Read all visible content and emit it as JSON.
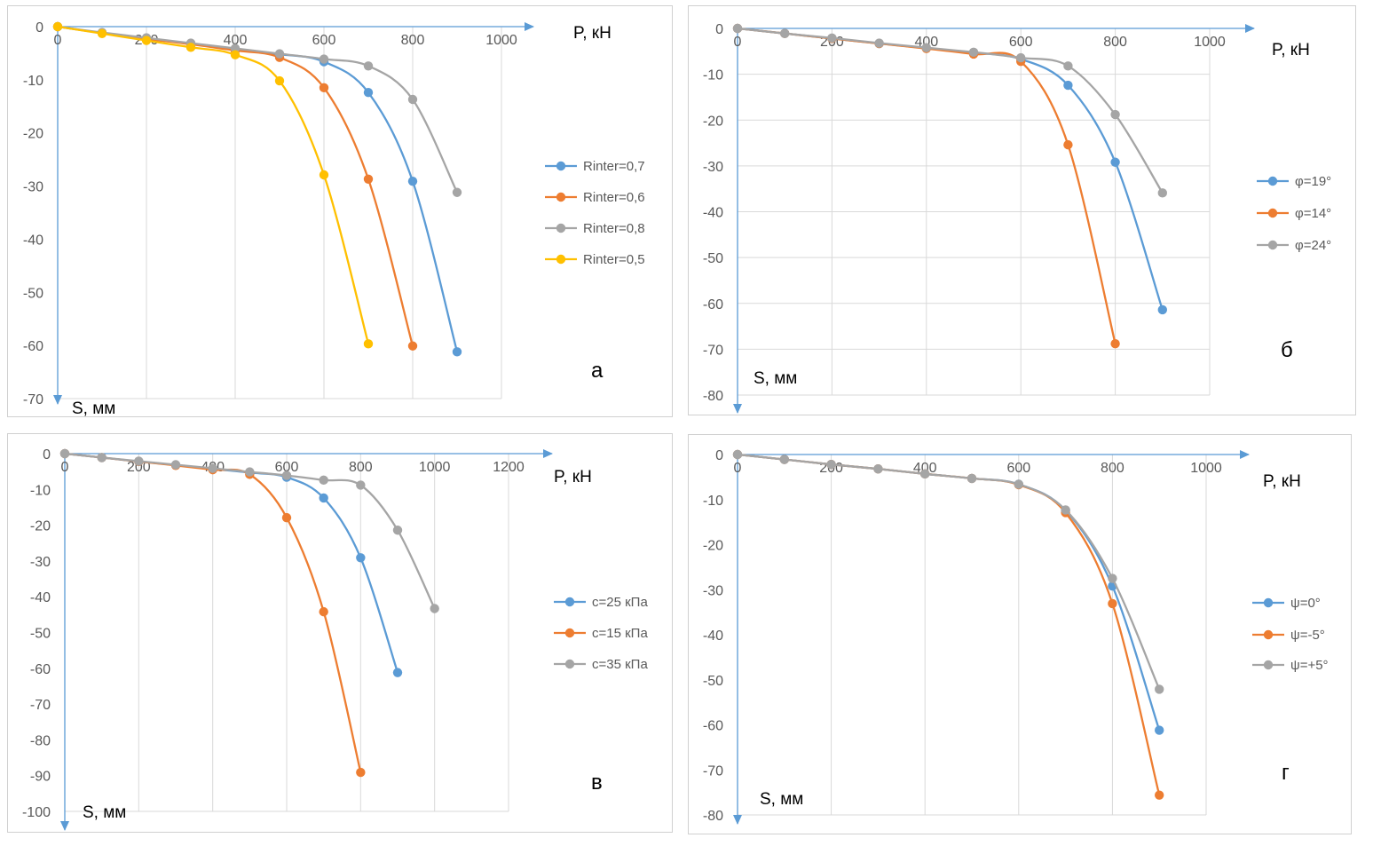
{
  "chart_data": [
    {
      "type": "line",
      "panel_letter": "а",
      "xlabel": "P, кН",
      "ylabel": "S, мм",
      "xlim": [
        0,
        1000
      ],
      "ylim": [
        -70,
        0
      ],
      "xticks": [
        0,
        200,
        400,
        600,
        800,
        1000
      ],
      "yticks": [
        0,
        -10,
        -20,
        -30,
        -40,
        -50,
        -60,
        -70
      ],
      "grid": "vertical",
      "legend": "right",
      "series": [
        {
          "name": "Rinter=0,7",
          "color": "#5b9bd5",
          "x": [
            0,
            100,
            200,
            300,
            400,
            500,
            600,
            700,
            800,
            900
          ],
          "y": [
            0,
            -1.2,
            -2.3,
            -3.2,
            -4.3,
            -5.2,
            -6.6,
            -12.4,
            -29.1,
            -61.2
          ]
        },
        {
          "name": "Rinter=0,6",
          "color": "#ed7d31",
          "x": [
            0,
            100,
            200,
            300,
            400,
            500,
            600,
            700,
            800
          ],
          "y": [
            0,
            -1.2,
            -2.3,
            -3.3,
            -4.5,
            -5.8,
            -11.5,
            -28.7,
            -60.1
          ]
        },
        {
          "name": "Rinter=0,8",
          "color": "#a5a5a5",
          "x": [
            0,
            100,
            200,
            300,
            400,
            500,
            600,
            700,
            800,
            900
          ],
          "y": [
            0,
            -1.1,
            -2.1,
            -3.1,
            -4.1,
            -5.1,
            -6.1,
            -7.4,
            -13.7,
            -31.2
          ]
        },
        {
          "name": "Rinter=0,5",
          "color": "#ffc000",
          "x": [
            0,
            100,
            200,
            300,
            400,
            500,
            600,
            700
          ],
          "y": [
            0,
            -1.3,
            -2.6,
            -3.9,
            -5.3,
            -10.2,
            -27.9,
            -59.7
          ]
        }
      ]
    },
    {
      "type": "line",
      "panel_letter": "б",
      "xlabel": "P, кН",
      "ylabel": "S, мм",
      "xlim": [
        0,
        1000
      ],
      "ylim": [
        -80,
        0
      ],
      "xticks": [
        0,
        200,
        400,
        600,
        800,
        1000
      ],
      "yticks": [
        0,
        -10,
        -20,
        -30,
        -40,
        -50,
        -60,
        -70,
        -80
      ],
      "grid": "both",
      "legend": "right",
      "series": [
        {
          "name": "φ=19°",
          "color": "#5b9bd5",
          "x": [
            0,
            100,
            200,
            300,
            400,
            500,
            600,
            700,
            800,
            900
          ],
          "y": [
            0,
            -1.1,
            -2.2,
            -3.3,
            -4.3,
            -5.3,
            -6.7,
            -12.4,
            -29.2,
            -61.4
          ]
        },
        {
          "name": "φ=14°",
          "color": "#ed7d31",
          "x": [
            0,
            100,
            200,
            300,
            400,
            500,
            600,
            700,
            800
          ],
          "y": [
            0,
            -1.1,
            -2.2,
            -3.3,
            -4.4,
            -5.6,
            -7.2,
            -25.4,
            -68.8
          ]
        },
        {
          "name": "φ=24°",
          "color": "#a5a5a5",
          "x": [
            0,
            100,
            200,
            300,
            400,
            500,
            600,
            700,
            800,
            900
          ],
          "y": [
            0,
            -1.1,
            -2.1,
            -3.2,
            -4.2,
            -5.2,
            -6.4,
            -8.2,
            -18.8,
            -35.9
          ]
        }
      ]
    },
    {
      "type": "line",
      "panel_letter": "в",
      "xlabel": "P, кН",
      "ylabel": "S, мм",
      "xlim": [
        0,
        1200
      ],
      "ylim": [
        -100,
        0
      ],
      "xticks": [
        0,
        200,
        400,
        600,
        800,
        1000,
        1200
      ],
      "yticks": [
        0,
        -10,
        -20,
        -30,
        -40,
        -50,
        -60,
        -70,
        -80,
        -90,
        -100
      ],
      "grid": "vertical",
      "legend": "right",
      "series": [
        {
          "name": "с=25 кПа",
          "color": "#5b9bd5",
          "x": [
            0,
            100,
            200,
            300,
            400,
            500,
            600,
            700,
            800,
            900
          ],
          "y": [
            0,
            -1.1,
            -2.2,
            -3.2,
            -4.3,
            -5.3,
            -6.6,
            -12.4,
            -29.1,
            -61.2
          ]
        },
        {
          "name": "с=15 кПа",
          "color": "#ed7d31",
          "x": [
            0,
            100,
            200,
            300,
            400,
            500,
            600,
            700,
            800
          ],
          "y": [
            0,
            -1.1,
            -2.2,
            -3.3,
            -4.5,
            -5.8,
            -17.9,
            -44.2,
            -89.1
          ]
        },
        {
          "name": "с=35 кПа",
          "color": "#a5a5a5",
          "x": [
            0,
            100,
            200,
            300,
            400,
            500,
            600,
            700,
            800,
            900,
            1000
          ],
          "y": [
            0,
            -1.1,
            -2.1,
            -3.1,
            -4.1,
            -5.1,
            -6.1,
            -7.4,
            -8.8,
            -21.4,
            -43.3
          ]
        }
      ]
    },
    {
      "type": "line",
      "panel_letter": "г",
      "xlabel": "P, кН",
      "ylabel": "S, мм",
      "xlim": [
        0,
        1000
      ],
      "ylim": [
        -80,
        0
      ],
      "xticks": [
        0,
        200,
        400,
        600,
        800,
        1000
      ],
      "yticks": [
        0,
        -10,
        -20,
        -30,
        -40,
        -50,
        -60,
        -70,
        -80
      ],
      "grid": "vertical",
      "legend": "right",
      "series": [
        {
          "name": "ψ=0°",
          "color": "#5b9bd5",
          "x": [
            0,
            100,
            200,
            300,
            400,
            500,
            600,
            700,
            800,
            900
          ],
          "y": [
            0,
            -1.1,
            -2.2,
            -3.2,
            -4.3,
            -5.3,
            -6.6,
            -12.4,
            -29.2,
            -61.2
          ]
        },
        {
          "name": "ψ=-5°",
          "color": "#ed7d31",
          "x": [
            0,
            100,
            200,
            300,
            400,
            500,
            600,
            700,
            800,
            900
          ],
          "y": [
            0,
            -1.1,
            -2.2,
            -3.2,
            -4.3,
            -5.3,
            -6.7,
            -12.9,
            -33.1,
            -75.6
          ]
        },
        {
          "name": "ψ=+5°",
          "color": "#a5a5a5",
          "x": [
            0,
            100,
            200,
            300,
            400,
            500,
            600,
            700,
            800,
            900
          ],
          "y": [
            0,
            -1.1,
            -2.2,
            -3.2,
            -4.3,
            -5.3,
            -6.6,
            -12.3,
            -27.5,
            -52.1
          ]
        }
      ]
    }
  ]
}
